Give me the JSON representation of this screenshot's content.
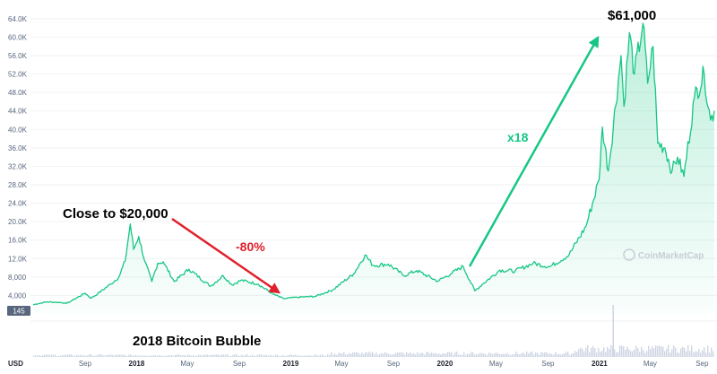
{
  "chart_data": {
    "type": "area",
    "currency_label": "USD",
    "y_ticks": [
      "4,000",
      "8,000",
      "12.0K",
      "16.0K",
      "20.0K",
      "24.0K",
      "28.0K",
      "32.0K",
      "36.0K",
      "40.0K",
      "44.0K",
      "48.0K",
      "52.0K",
      "56.0K",
      "60.0K",
      "64.0K"
    ],
    "y_tick_values": [
      4000,
      8000,
      12000,
      16000,
      20000,
      24000,
      28000,
      32000,
      36000,
      40000,
      44000,
      48000,
      52000,
      56000,
      60000,
      64000
    ],
    "ylim": [
      0,
      66500
    ],
    "x_ticks": [
      {
        "label": "Sep",
        "date": "2017-09-01",
        "bold": false
      },
      {
        "label": "2018",
        "date": "2018-01-01",
        "bold": true
      },
      {
        "label": "May",
        "date": "2018-05-01",
        "bold": false
      },
      {
        "label": "Sep",
        "date": "2018-09-01",
        "bold": false
      },
      {
        "label": "2019",
        "date": "2019-01-01",
        "bold": true
      },
      {
        "label": "May",
        "date": "2019-05-01",
        "bold": false
      },
      {
        "label": "Sep",
        "date": "2019-09-01",
        "bold": false
      },
      {
        "label": "2020",
        "date": "2020-01-01",
        "bold": true
      },
      {
        "label": "May",
        "date": "2020-05-01",
        "bold": false
      },
      {
        "label": "Sep",
        "date": "2020-09-01",
        "bold": false
      },
      {
        "label": "2021",
        "date": "2021-01-01",
        "bold": true
      },
      {
        "label": "May",
        "date": "2021-05-01",
        "bold": false
      },
      {
        "label": "Sep",
        "date": "2021-09-01",
        "bold": false
      }
    ],
    "xlim": [
      "2017-05-01",
      "2021-09-30"
    ],
    "series": [
      {
        "color": "#16c784",
        "points": [
          [
            "2017-05-01",
            2000
          ],
          [
            "2017-06-01",
            2600
          ],
          [
            "2017-07-01",
            2500
          ],
          [
            "2017-07-20",
            2300
          ],
          [
            "2017-08-01",
            2900
          ],
          [
            "2017-09-01",
            4500
          ],
          [
            "2017-09-15",
            3400
          ],
          [
            "2017-10-01",
            4400
          ],
          [
            "2017-11-01",
            6500
          ],
          [
            "2017-11-20",
            8000
          ],
          [
            "2017-12-05",
            11500
          ],
          [
            "2017-12-17",
            19500
          ],
          [
            "2017-12-25",
            14000
          ],
          [
            "2018-01-06",
            16800
          ],
          [
            "2018-01-20",
            11500
          ],
          [
            "2018-02-06",
            7000
          ],
          [
            "2018-02-20",
            11000
          ],
          [
            "2018-03-05",
            11300
          ],
          [
            "2018-03-31",
            7000
          ],
          [
            "2018-05-05",
            9700
          ],
          [
            "2018-06-25",
            6000
          ],
          [
            "2018-07-25",
            8300
          ],
          [
            "2018-08-15",
            6300
          ],
          [
            "2018-09-05",
            7300
          ],
          [
            "2018-10-15",
            6500
          ],
          [
            "2018-11-20",
            4300
          ],
          [
            "2018-12-15",
            3300
          ],
          [
            "2019-01-15",
            3600
          ],
          [
            "2019-02-28",
            3800
          ],
          [
            "2019-04-10",
            5200
          ],
          [
            "2019-05-30",
            8700
          ],
          [
            "2019-06-26",
            12800
          ],
          [
            "2019-07-15",
            10500
          ],
          [
            "2019-08-20",
            10800
          ],
          [
            "2019-09-26",
            8300
          ],
          [
            "2019-10-26",
            9400
          ],
          [
            "2019-12-15",
            7100
          ],
          [
            "2020-01-15",
            8700
          ],
          [
            "2020-02-13",
            10300
          ],
          [
            "2020-03-12",
            5000
          ],
          [
            "2020-04-01",
            6600
          ],
          [
            "2020-05-10",
            9500
          ],
          [
            "2020-06-15",
            9300
          ],
          [
            "2020-07-28",
            11000
          ],
          [
            "2020-09-05",
            10200
          ],
          [
            "2020-10-21",
            12800
          ],
          [
            "2020-11-30",
            19000
          ],
          [
            "2020-12-31",
            29000
          ],
          [
            "2021-01-08",
            40500
          ],
          [
            "2021-01-22",
            31000
          ],
          [
            "2021-02-21",
            56000
          ],
          [
            "2021-02-28",
            45000
          ],
          [
            "2021-03-13",
            61000
          ],
          [
            "2021-03-25",
            52000
          ],
          [
            "2021-04-14",
            63000
          ],
          [
            "2021-04-25",
            50000
          ],
          [
            "2021-05-08",
            58000
          ],
          [
            "2021-05-19",
            37000
          ],
          [
            "2021-06-05",
            36000
          ],
          [
            "2021-06-22",
            31000
          ],
          [
            "2021-07-05",
            34000
          ],
          [
            "2021-07-20",
            29800
          ],
          [
            "2021-08-14",
            47000
          ],
          [
            "2021-09-06",
            52000
          ],
          [
            "2021-09-21",
            42000
          ],
          [
            "2021-09-30",
            44000
          ]
        ]
      }
    ],
    "annotations": {
      "peak_2021": "$61,000",
      "peak_2017": "Close to $20,000",
      "drop": "-80%",
      "gain": "x18",
      "bubble": "2018 Bitcoin Bubble"
    },
    "volume_badge": "145",
    "watermark": "CoinMarketCap"
  }
}
